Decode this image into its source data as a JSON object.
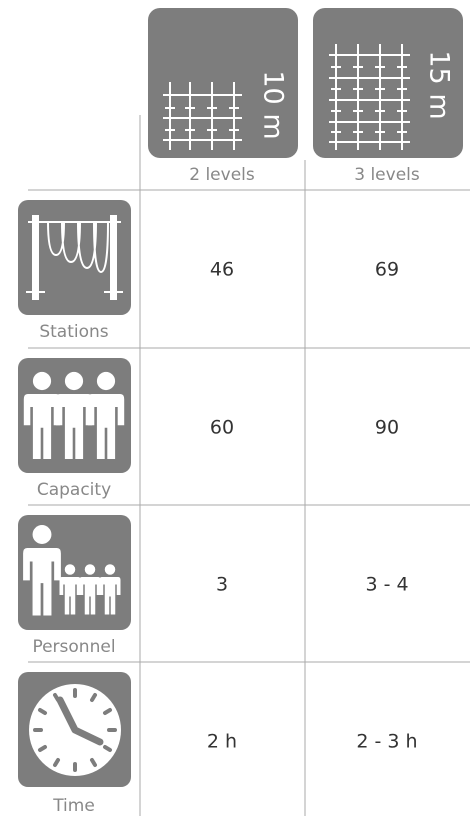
{
  "columns": [
    {
      "height": "10 m",
      "levels": "2 levels"
    },
    {
      "height": "15 m",
      "levels": "3 levels"
    }
  ],
  "rows": [
    {
      "label": "Stations",
      "values": [
        46,
        69
      ]
    },
    {
      "label": "Capacity",
      "values": [
        60,
        90
      ]
    },
    {
      "label": "Personnel",
      "values": [
        3,
        "3 - 4"
      ]
    },
    {
      "label": "Time",
      "values": [
        "2 h",
        "2 - 3 h"
      ]
    }
  ]
}
